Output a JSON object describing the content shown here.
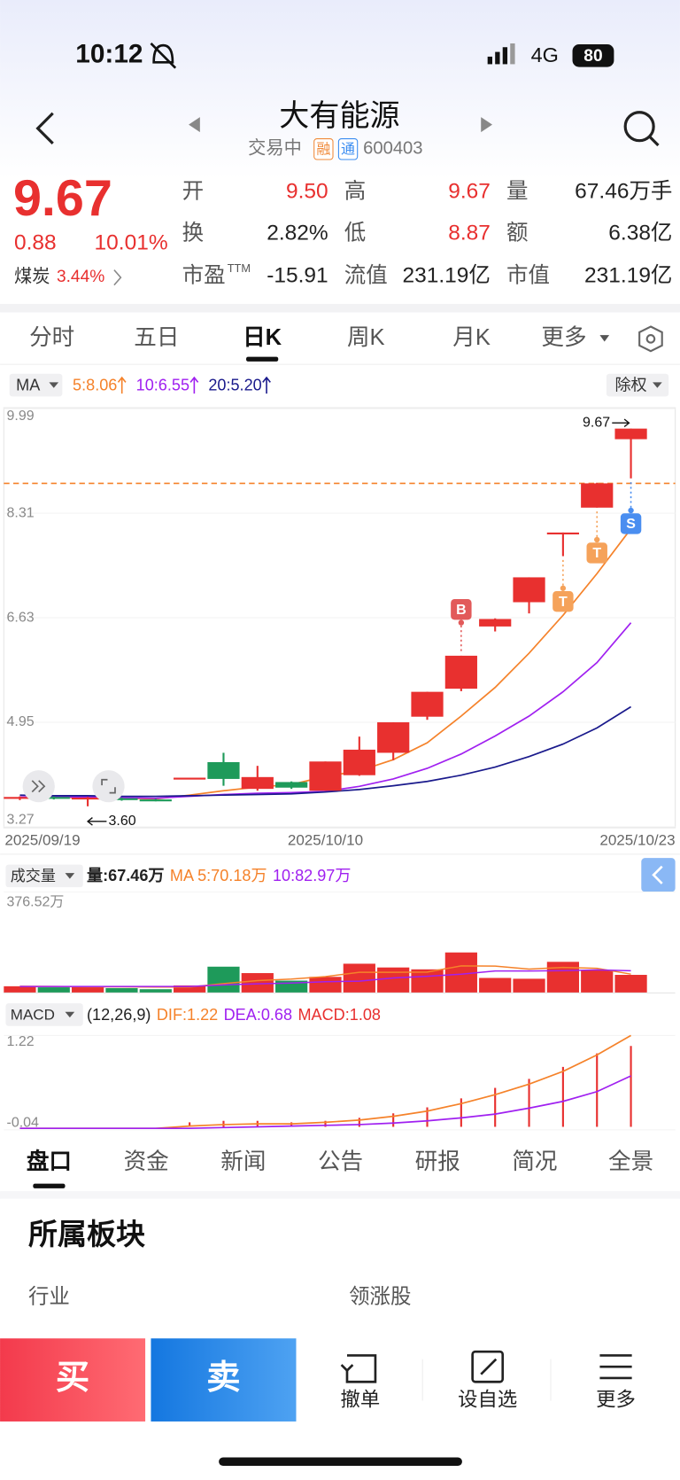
{
  "status_bar": {
    "time": "10:12",
    "network": "4G",
    "battery": "80"
  },
  "header": {
    "title": "大有能源",
    "status": "交易中",
    "badges": [
      "融",
      "通"
    ],
    "code": "600403"
  },
  "quote": {
    "price": "9.67",
    "change": "0.88",
    "change_pct": "10.01%",
    "sector": "煤炭",
    "sector_pct": "3.44%",
    "rows": [
      [
        {
          "label": "开",
          "value": "9.50",
          "color": "#e8302f"
        },
        {
          "label": "高",
          "value": "9.67",
          "color": "#e8302f"
        },
        {
          "label": "量",
          "value": "67.46万手",
          "color": "#222222"
        }
      ],
      [
        {
          "label": "换",
          "value": "2.82%",
          "color": "#222222"
        },
        {
          "label": "低",
          "value": "8.87",
          "color": "#e8302f"
        },
        {
          "label": "额",
          "value": "6.38亿",
          "color": "#222222"
        }
      ],
      [
        {
          "label": "市盈",
          "sup": "TTM",
          "value": "-15.91",
          "color": "#222222"
        },
        {
          "label": "流值",
          "value": "231.19亿",
          "color": "#222222"
        },
        {
          "label": "市值",
          "value": "231.19亿",
          "color": "#222222"
        }
      ]
    ]
  },
  "chart_tabs": {
    "items": [
      "分时",
      "五日",
      "日K",
      "周K",
      "月K",
      "更多"
    ],
    "active": 2
  },
  "kline": {
    "indicator": "MA",
    "adjust": "除权",
    "ma_legend": [
      {
        "label": "5:8.06",
        "color": "#f5822a"
      },
      {
        "label": "10:6.55",
        "color": "#a020f0"
      },
      {
        "label": "20:5.20",
        "color": "#1a1a8c"
      }
    ],
    "ylim": [
      3.27,
      9.99
    ],
    "yticks": [
      9.99,
      8.31,
      6.63,
      4.95,
      3.27
    ],
    "categories": [
      "2025/09/19",
      null,
      null,
      null,
      null,
      null,
      null,
      null,
      null,
      "2025/10/10",
      null,
      null,
      null,
      null,
      null,
      null,
      null,
      null,
      "2025/10/23"
    ],
    "open": [
      3.73,
      3.75,
      3.72,
      3.73,
      3.71,
      4.06,
      4.31,
      3.88,
      3.99,
      3.85,
      4.1,
      4.46,
      5.04,
      5.49,
      6.49,
      6.88,
      8.0,
      8.4,
      9.5
    ],
    "high": [
      3.76,
      3.76,
      3.75,
      3.74,
      3.72,
      4.06,
      4.46,
      4.25,
      4.0,
      4.32,
      4.72,
      4.95,
      5.44,
      6.02,
      6.62,
      7.28,
      8.0,
      8.8,
      9.67
    ],
    "low": [
      3.7,
      3.71,
      3.6,
      3.69,
      3.68,
      4.06,
      3.93,
      3.85,
      3.88,
      3.85,
      4.09,
      4.34,
      4.99,
      5.45,
      6.41,
      6.7,
      7.62,
      8.4,
      8.87
    ],
    "close": [
      3.75,
      3.73,
      3.74,
      3.7,
      3.69,
      4.06,
      4.04,
      4.07,
      3.9,
      4.32,
      4.51,
      4.95,
      5.44,
      6.02,
      6.61,
      7.28,
      8.0,
      8.79,
      9.67
    ],
    "up_color": "#e8302f",
    "down_color": "#1e9a5a",
    "ma_series": [
      {
        "values": [
          3.74,
          3.74,
          3.74,
          3.73,
          3.72,
          3.78,
          3.85,
          3.91,
          3.95,
          4.08,
          4.17,
          4.35,
          4.62,
          5.05,
          5.51,
          6.06,
          6.67,
          7.34,
          8.06
        ],
        "color": "#f5822a"
      },
      {
        "values": [
          3.75,
          3.75,
          3.75,
          3.74,
          3.73,
          3.76,
          3.79,
          3.81,
          3.82,
          3.84,
          3.92,
          4.04,
          4.21,
          4.44,
          4.73,
          5.05,
          5.44,
          5.91,
          6.55
        ],
        "color": "#a020f0"
      },
      {
        "values": [
          3.78,
          3.77,
          3.77,
          3.76,
          3.76,
          3.77,
          3.78,
          3.79,
          3.8,
          3.83,
          3.87,
          3.93,
          4.0,
          4.1,
          4.23,
          4.4,
          4.6,
          4.86,
          5.2
        ],
        "color": "#1a1a8c"
      }
    ],
    "prev_close": 8.79,
    "max_label": "9.67",
    "min_label": "3.60",
    "signals": [
      null,
      null,
      null,
      null,
      null,
      null,
      null,
      null,
      null,
      null,
      null,
      null,
      null,
      "B",
      null,
      null,
      "T",
      "T",
      "S"
    ]
  },
  "volume": {
    "indicator": "成交量",
    "legend": [
      {
        "label": "量:67.46万",
        "color": "#222222"
      },
      {
        "label": "MA 5:70.18万",
        "color": "#f5822a"
      },
      {
        "label": "10:82.97万",
        "color": "#a020f0"
      }
    ],
    "ylim": [
      0,
      376.52
    ],
    "yticks": [
      {
        "value": 376.52,
        "label": "376.52万"
      }
    ],
    "values": [
      25,
      21,
      25,
      18,
      14,
      28,
      98,
      74,
      46,
      60,
      109,
      95,
      88,
      151,
      56,
      53,
      116,
      84,
      67.46
    ],
    "ma_series": [
      {
        "values": [
          25,
          24,
          23,
          23,
          22,
          22,
          35,
          46,
          52,
          61,
          77,
          77,
          78,
          101,
          100,
          89,
          95,
          92,
          70.18
        ],
        "color": "#f5822a"
      },
      {
        "values": [
          24,
          24,
          24,
          24,
          24,
          24,
          30,
          34,
          37,
          42,
          44,
          56,
          62,
          70,
          82,
          82,
          83,
          86,
          82.97
        ],
        "color": "#a020f0"
      }
    ]
  },
  "macd": {
    "indicator": "MACD",
    "legend": [
      {
        "label": "(12,26,9)",
        "color": "#222222"
      },
      {
        "label": "DIF:1.22",
        "color": "#f5822a"
      },
      {
        "label": "DEA:0.68",
        "color": "#a020f0"
      },
      {
        "label": "MACD:1.08",
        "color": "#e8302f"
      }
    ],
    "ylim": [
      -0.04,
      1.22
    ],
    "yticks": [
      1.22,
      -0.04
    ],
    "dif": [
      -0.02,
      -0.02,
      -0.02,
      -0.02,
      -0.02,
      0.01,
      0.03,
      0.04,
      0.04,
      0.06,
      0.09,
      0.14,
      0.21,
      0.31,
      0.43,
      0.57,
      0.74,
      0.96,
      1.22
    ],
    "dea": [
      -0.02,
      -0.02,
      -0.02,
      -0.02,
      -0.02,
      -0.02,
      -0.01,
      0.0,
      0.01,
      0.02,
      0.03,
      0.05,
      0.08,
      0.12,
      0.17,
      0.25,
      0.34,
      0.47,
      0.68
    ],
    "hist": [
      0,
      0,
      0,
      0,
      0,
      0.06,
      0.08,
      0.08,
      0.06,
      0.08,
      0.12,
      0.18,
      0.26,
      0.38,
      0.52,
      0.64,
      0.8,
      0.98,
      1.08
    ],
    "dif_color": "#f5822a",
    "dea_color": "#a020f0",
    "hist_color": "#e8302f"
  },
  "detail_tabs": {
    "items": [
      "盘口",
      "资金",
      "新闻",
      "公告",
      "研报",
      "简况",
      "全景"
    ],
    "active": 0
  },
  "section": {
    "title": "所属板块",
    "columns": [
      "行业",
      "领涨股"
    ]
  },
  "bottom_bar": {
    "buy": "买",
    "sell": "卖",
    "actions": [
      "撤单",
      "设自选",
      "更多"
    ]
  }
}
